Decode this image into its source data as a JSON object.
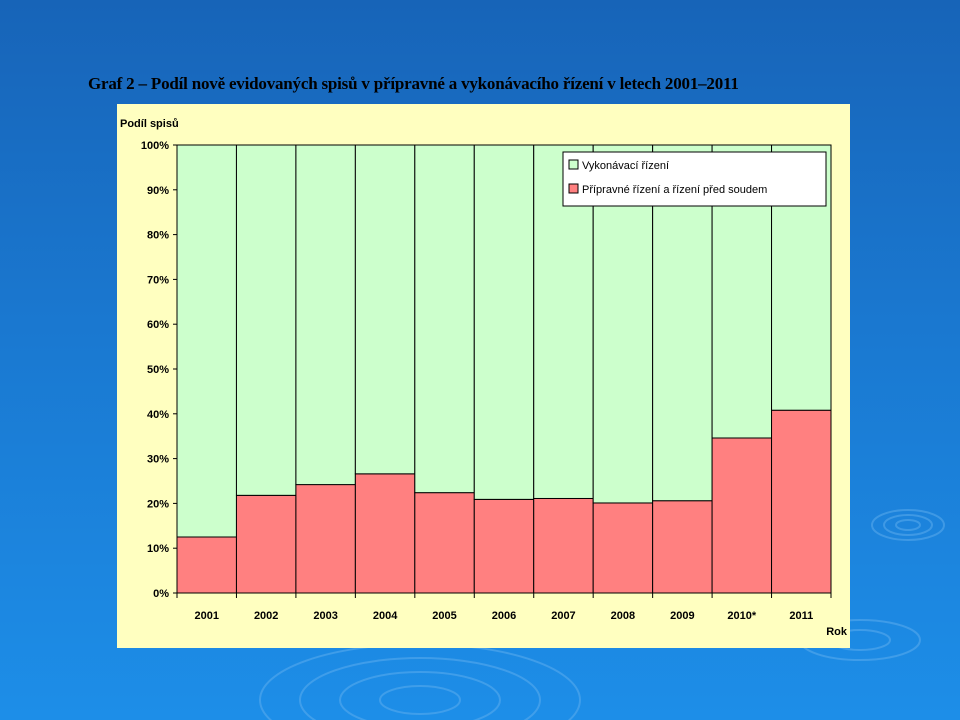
{
  "slide": {
    "title": "Graf 2 – Podíl nově evidovaných spisů v přípravné a vykonávacího řízení v letech 2001–2011"
  },
  "chart_data": {
    "type": "bar",
    "stacked": true,
    "ylabel": "Podíl spisů",
    "xlabel": "Rok",
    "ylim": [
      0,
      100
    ],
    "yticks": [
      "0%",
      "10%",
      "20%",
      "30%",
      "40%",
      "50%",
      "60%",
      "70%",
      "80%",
      "90%",
      "100%"
    ],
    "categories": [
      "2001",
      "2002",
      "2003",
      "2004",
      "2005",
      "2006",
      "2007",
      "2008",
      "2009",
      "2010*",
      "2011"
    ],
    "series": [
      {
        "name": "Přípravné řízení a řízení před soudem",
        "color": "#ff8080",
        "values": [
          12.5,
          21.8,
          24.2,
          26.6,
          22.4,
          20.9,
          21.1,
          20.1,
          20.6,
          34.6,
          40.8
        ]
      },
      {
        "name": "Vykonávací řízení",
        "color": "#ccffcc",
        "values": [
          87.5,
          78.2,
          75.8,
          73.4,
          77.6,
          79.1,
          78.9,
          79.9,
          79.4,
          65.4,
          59.2
        ]
      }
    ],
    "legend_order": [
      1,
      0
    ],
    "legend_position": "top-right",
    "grid": false,
    "background": "#ffffc0"
  }
}
